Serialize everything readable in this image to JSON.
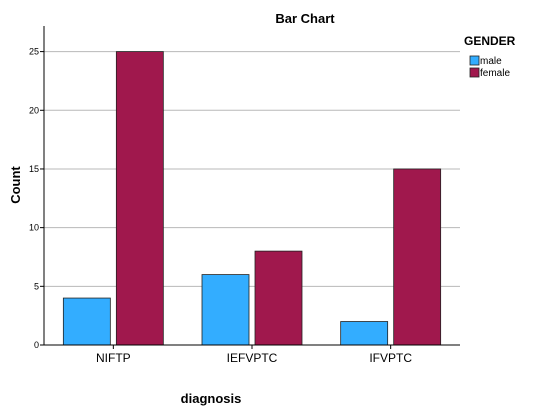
{
  "chart_data": {
    "type": "bar",
    "title": "Bar Chart",
    "xlabel": "diagnosis",
    "ylabel": "Count",
    "categories": [
      "NIFTP",
      "IEFVPTC",
      "IFVPTC"
    ],
    "series": [
      {
        "name": "male",
        "values": [
          4,
          6,
          2
        ],
        "color": "#33adff"
      },
      {
        "name": "female",
        "values": [
          25,
          8,
          15
        ],
        "color": "#a0184d"
      }
    ],
    "ylim": [
      0,
      26.5
    ],
    "yticks": [
      0,
      5,
      10,
      15,
      20,
      25
    ],
    "grid": true,
    "legend": {
      "title": "GENDER",
      "placement": "top-right"
    }
  }
}
